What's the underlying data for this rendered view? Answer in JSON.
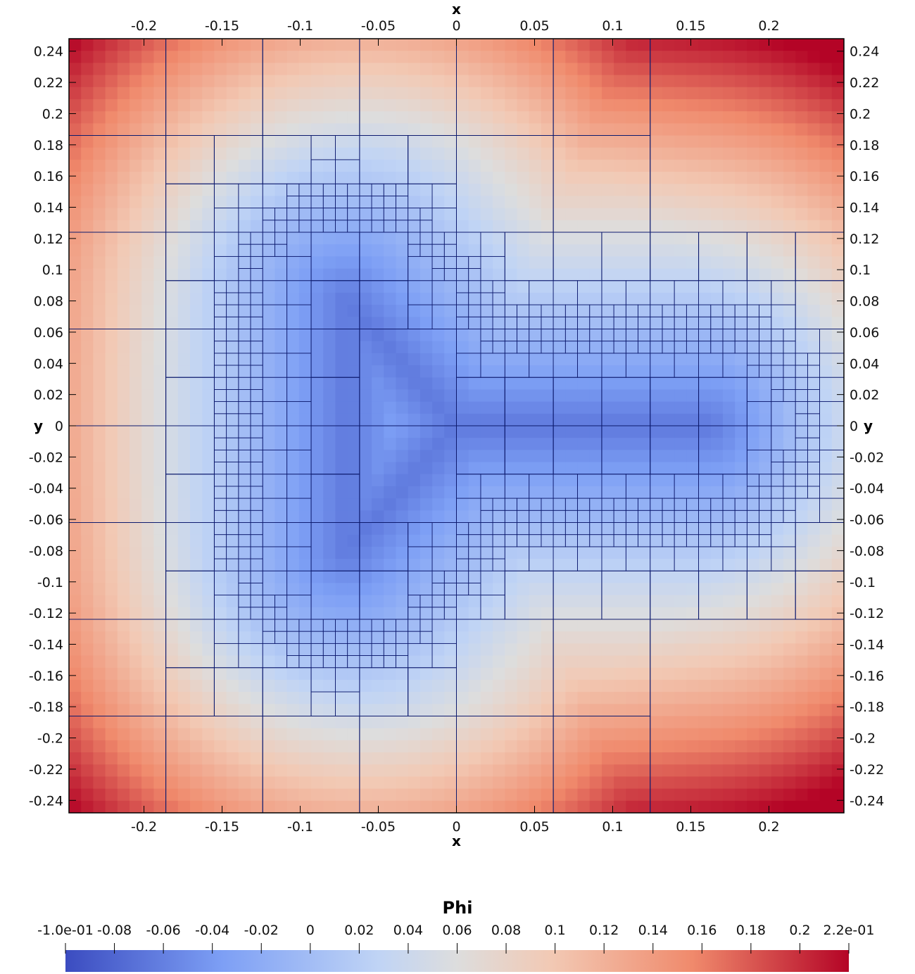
{
  "chart_data": {
    "type": "heatmap",
    "x_title": "x",
    "y_title": "y",
    "xlim": [
      -0.248,
      0.248
    ],
    "ylim": [
      -0.248,
      0.248
    ],
    "x_ticks": [
      -0.2,
      -0.15,
      -0.1,
      -0.05,
      0,
      0.05,
      0.1,
      0.15,
      0.2
    ],
    "x_tick_labels": [
      "-0.2",
      "-0.15",
      "-0.1",
      "-0.05",
      "0",
      "0.05",
      "0.1",
      "0.15",
      "0.2"
    ],
    "y_ticks": [
      0.24,
      0.22,
      0.2,
      0.18,
      0.16,
      0.14,
      0.12,
      0.1,
      0.08,
      0.06,
      0.04,
      0.02,
      0,
      -0.02,
      -0.04,
      -0.06,
      -0.08,
      -0.1,
      -0.12,
      -0.14,
      -0.16,
      -0.18,
      -0.2,
      -0.22,
      -0.24
    ],
    "y_tick_labels": [
      "0.24",
      "0.22",
      "0.2",
      "0.18",
      "0.16",
      "0.14",
      "0.12",
      "0.1",
      "0.08",
      "0.06",
      "0.04",
      "0.02",
      "0",
      "-0.02",
      "-0.04",
      "-0.06",
      "-0.08",
      "-0.1",
      "-0.12",
      "-0.14",
      "-0.16",
      "-0.18",
      "-0.2",
      "-0.22",
      "-0.24"
    ],
    "field": "Phi",
    "colorbar": {
      "title": "Phi",
      "range": [
        -0.1,
        0.22
      ],
      "ticks": [
        -0.1,
        -0.08,
        -0.06,
        -0.04,
        -0.02,
        0,
        0.02,
        0.04,
        0.06,
        0.08,
        0.1,
        0.12,
        0.14,
        0.16,
        0.18,
        0.2,
        0.22
      ],
      "tick_labels": [
        "-1.0e-01",
        "-0.08",
        "-0.06",
        "-0.04",
        "-0.02",
        "0",
        "0.02",
        "0.04",
        "0.06",
        "0.08",
        "0.1",
        "0.12",
        "0.14",
        "0.16",
        "0.18",
        "0.2",
        "2.2e-01"
      ],
      "colors": [
        "#3b4cc0",
        "#dddddd",
        "#b40426"
      ],
      "orientation": "horizontal"
    },
    "mesh": "adaptively refined quadtree grid, finest along the zero contour of Phi",
    "mesh_color": "#0d1a6e"
  }
}
